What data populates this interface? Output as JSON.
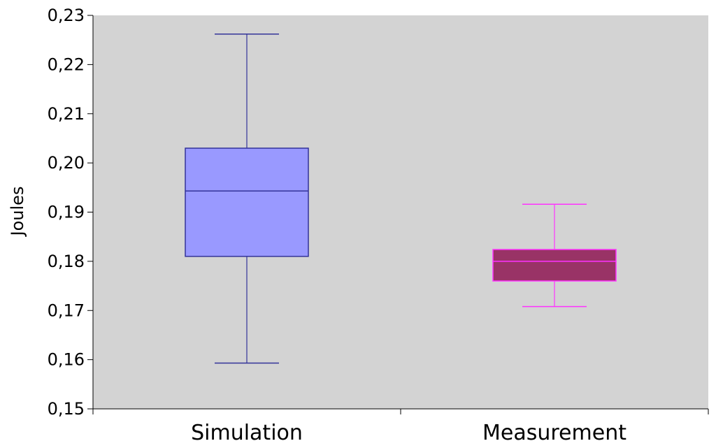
{
  "chart_data": {
    "type": "boxplot",
    "title": "",
    "xlabel": "",
    "ylabel": "Joules",
    "ylim": [
      0.15,
      0.23
    ],
    "yticks": [
      {
        "value": 0.15,
        "label": "0,15"
      },
      {
        "value": 0.16,
        "label": "0,16"
      },
      {
        "value": 0.17,
        "label": "0,17"
      },
      {
        "value": 0.18,
        "label": "0,18"
      },
      {
        "value": 0.19,
        "label": "0,19"
      },
      {
        "value": 0.2,
        "label": "0,20"
      },
      {
        "value": 0.21,
        "label": "0,21"
      },
      {
        "value": 0.22,
        "label": "0,22"
      },
      {
        "value": 0.23,
        "label": "0,23"
      }
    ],
    "categories": [
      "Simulation",
      "Measurement"
    ],
    "boxes": [
      {
        "category": "Simulation",
        "min": 0.1593,
        "q1": 0.181,
        "median": 0.1943,
        "q3": 0.203,
        "max": 0.2262,
        "fill": "#9999ff",
        "stroke": "#333399",
        "median_color": "#333399"
      },
      {
        "category": "Measurement",
        "min": 0.1708,
        "q1": 0.176,
        "median": 0.18,
        "q3": 0.1824,
        "max": 0.1916,
        "fill": "#993366",
        "stroke": "#ff33ff",
        "median_color": "#ff33ff"
      }
    ],
    "plot_background": "#d3d3d3",
    "grid": false,
    "legend": "none"
  }
}
